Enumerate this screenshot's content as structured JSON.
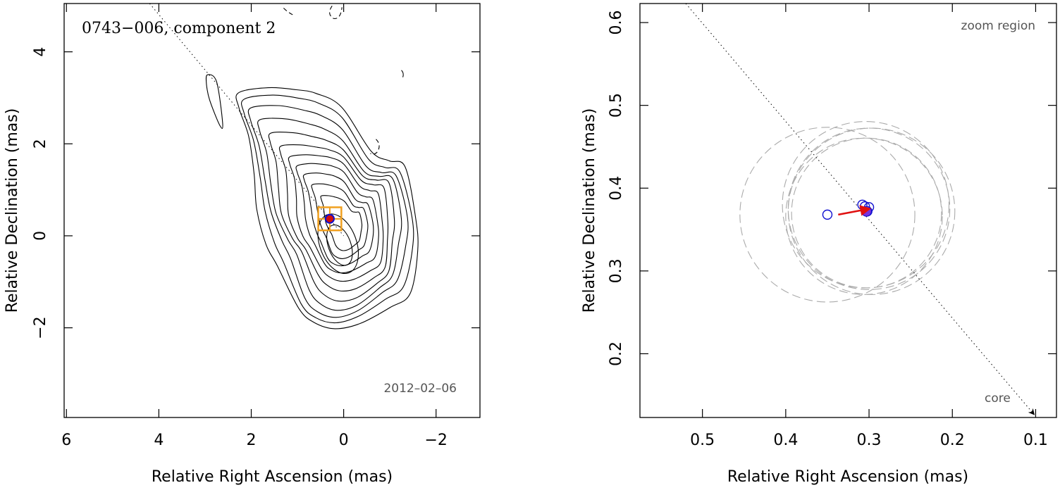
{
  "chart_data": [
    {
      "type": "contour",
      "panel": "left",
      "title": "0743−006, component 2",
      "epoch_label": "2012–02–06",
      "xlabel": "Relative Right Ascension (mas)",
      "ylabel": "Relative Declination (mas)",
      "xlim": [
        6.05,
        -2.95
      ],
      "ylim": [
        -3.95,
        5.05
      ],
      "x_ticks": [
        6,
        4,
        2,
        0,
        -2
      ],
      "x_tick_labels": [
        "6",
        "4",
        "2",
        "0",
        "−2"
      ],
      "y_ticks": [
        4,
        2,
        0,
        -2
      ],
      "y_tick_labels": [
        "4",
        "2",
        "0",
        "−2"
      ],
      "component_position": [
        0.3,
        0.37
      ],
      "zoom_box_center": [
        0.3,
        0.37
      ],
      "zoom_box_halfwidth": 0.25,
      "jet_direction_line": {
        "from": [
          4.2,
          5.05
        ],
        "to": [
          0.0,
          0.0
        ]
      }
    },
    {
      "type": "scatter",
      "panel": "right",
      "title": "zoom region",
      "xlabel": "Relative Right Ascension (mas)",
      "ylabel": "Relative Declination (mas)",
      "xlim": [
        0.575,
        0.075
      ],
      "ylim": [
        0.123,
        0.623
      ],
      "x_ticks": [
        0.5,
        0.4,
        0.3,
        0.2,
        0.1
      ],
      "x_tick_labels": [
        "0.5",
        "0.4",
        "0.3",
        "0.2",
        "0.1"
      ],
      "y_ticks": [
        0.2,
        0.3,
        0.4,
        0.5,
        0.6
      ],
      "y_tick_labels": [
        "0.2",
        "0.3",
        "0.4",
        "0.5",
        "0.6"
      ],
      "epoch_positions": [
        {
          "x": 0.35,
          "y": 0.368
        },
        {
          "x": 0.308,
          "y": 0.38
        },
        {
          "x": 0.305,
          "y": 0.378
        },
        {
          "x": 0.3,
          "y": 0.377
        },
        {
          "x": 0.302,
          "y": 0.372
        }
      ],
      "mean_position": {
        "x": 0.303,
        "y": 0.372
      },
      "velocity_vector": {
        "from": [
          0.337,
          0.368
        ],
        "to": [
          0.3,
          0.375
        ]
      },
      "error_circles": [
        {
          "x": 0.35,
          "y": 0.368,
          "r": 0.105
        },
        {
          "x": 0.304,
          "y": 0.38,
          "r": 0.1
        },
        {
          "x": 0.3,
          "y": 0.375,
          "r": 0.097
        },
        {
          "x": 0.297,
          "y": 0.372,
          "r": 0.1
        },
        {
          "x": 0.306,
          "y": 0.366,
          "r": 0.094
        },
        {
          "x": 0.303,
          "y": 0.37,
          "r": 0.09
        }
      ],
      "core_label": "core",
      "jet_direction_line": {
        "from": [
          0.52,
          0.623
        ],
        "to": [
          0.1,
          0.123
        ]
      }
    }
  ]
}
